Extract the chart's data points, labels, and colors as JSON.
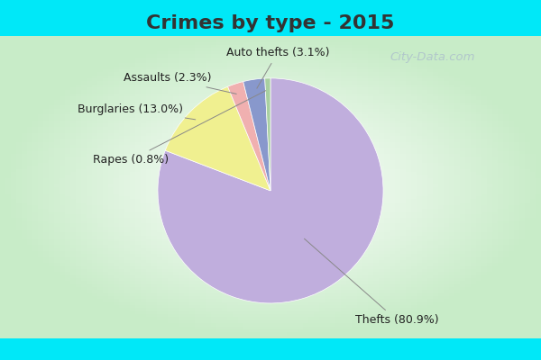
{
  "title": "Crimes by type - 2015",
  "title_fontsize": 16,
  "title_fontweight": "bold",
  "slices": [
    {
      "label": "Thefts",
      "pct": 80.9,
      "color": "#c0aedd"
    },
    {
      "label": "Burglaries",
      "pct": 13.0,
      "color": "#f0f090"
    },
    {
      "label": "Assaults",
      "pct": 2.3,
      "color": "#f0b0b0"
    },
    {
      "label": "Auto thefts",
      "pct": 3.1,
      "color": "#8898cc"
    },
    {
      "label": "Rapes",
      "pct": 0.8,
      "color": "#a8d0a0"
    }
  ],
  "background_cyan": "#00e8f8",
  "background_green": "#c8ecc8",
  "watermark_text": "City-Data.com",
  "label_fontsize": 9,
  "title_color": "#333333"
}
